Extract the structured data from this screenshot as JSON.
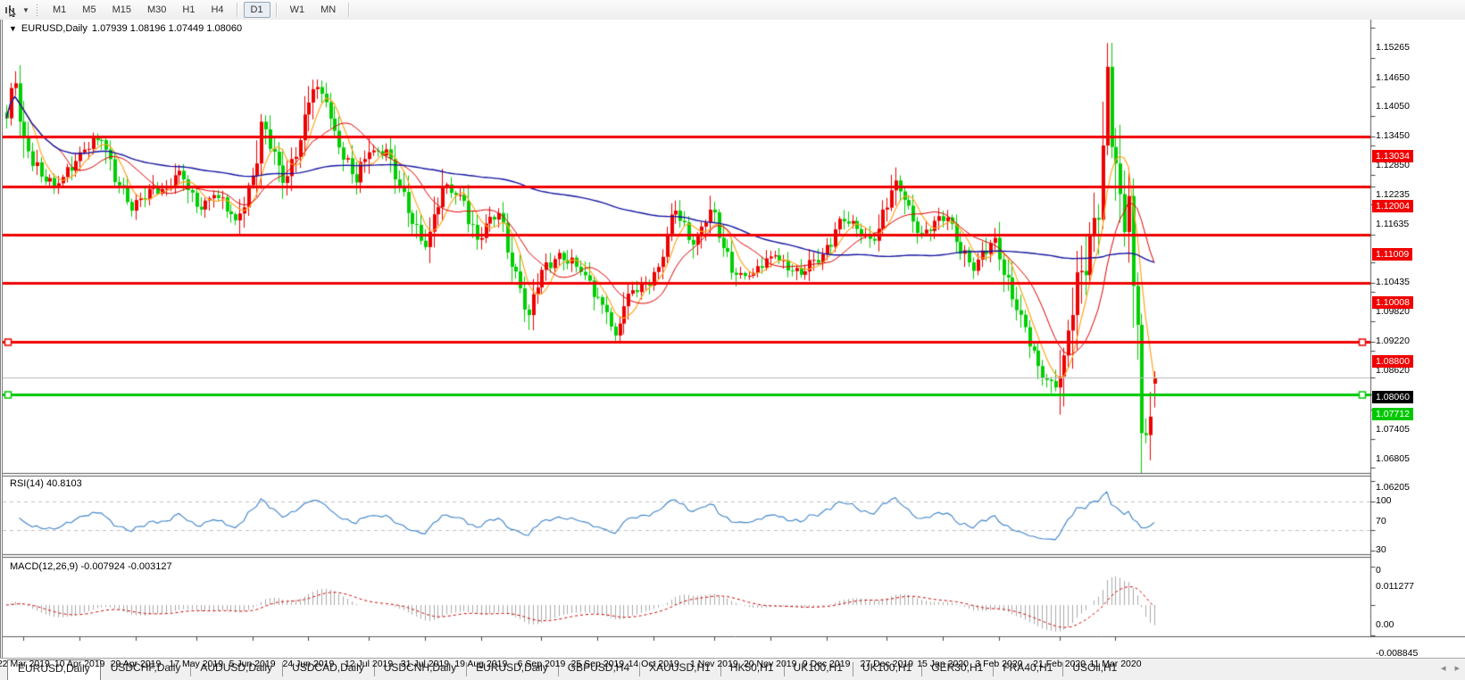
{
  "toolbar": {
    "timeframe_buttons": [
      "M1",
      "M5",
      "M15",
      "M30",
      "H1",
      "H4",
      "D1",
      "W1",
      "MN"
    ],
    "active_timeframe": "D1",
    "cursor_tool_icon": "chart-cursor-icon",
    "dropdown_glyph": "▼"
  },
  "chart_header": {
    "dropdown_glyph": "▼",
    "symbol": "EURUSD,Daily",
    "values_text": "1.07939 1.08196 1.07449 1.08060"
  },
  "y_axis": {
    "tick_labels": [
      "1.15265",
      "1.14650",
      "1.14050",
      "1.13450",
      "1.12850",
      "1.12235",
      "1.11635",
      "1.10435",
      "1.09820",
      "1.09220",
      "1.08620",
      "1.07405",
      "1.06805",
      "1.06205"
    ],
    "badges": [
      {
        "label": "1.13034",
        "bg": "#f00000"
      },
      {
        "label": "1.12004",
        "bg": "#f00000"
      },
      {
        "label": "1.11009",
        "bg": "#f00000"
      },
      {
        "label": "1.10008",
        "bg": "#f00000"
      },
      {
        "label": "1.08800",
        "bg": "#f00000"
      },
      {
        "label": "1.08060",
        "bg": "#000000"
      },
      {
        "label": "1.07712",
        "bg": "#00c800"
      }
    ]
  },
  "rsi_panel": {
    "label": "RSI(14)",
    "value": "40.8103",
    "axis_labels": [
      {
        "text": "100",
        "level": 100
      },
      {
        "text": "70",
        "level": 70
      },
      {
        "text": "30",
        "level": 30
      },
      {
        "text": "0",
        "level": 0
      }
    ],
    "dashed_levels": [
      70,
      30
    ],
    "line_color": "#3c82c8"
  },
  "macd_panel": {
    "label": "MACD(12,26,9)",
    "values_text": "-0.007924 -0.003127",
    "axis_labels": [
      {
        "text": "0.011277",
        "value": 0.011277
      },
      {
        "text": "0.00",
        "value": 0.0
      },
      {
        "text": "-0.008845",
        "value": -0.008845
      }
    ],
    "histogram_color": "#aaaaaa",
    "signal_color": "#d00000"
  },
  "x_axis": {
    "labels": [
      {
        "text": "22 Mar 2019",
        "date": "2019-03-22"
      },
      {
        "text": "10 Apr 2019",
        "date": "2019-04-10"
      },
      {
        "text": "29 Apr 2019",
        "date": "2019-04-29"
      },
      {
        "text": "17 May 2019",
        "date": "2019-05-17"
      },
      {
        "text": "5 Jun 2019",
        "date": "2019-06-05"
      },
      {
        "text": "24 Jun 2019",
        "date": "2019-06-24"
      },
      {
        "text": "12 Jul 2019",
        "date": "2019-07-12"
      },
      {
        "text": "31 Jul 2019",
        "date": "2019-07-31"
      },
      {
        "text": "19 Aug 2019",
        "date": "2019-08-19"
      },
      {
        "text": "6 Sep 2019",
        "date": "2019-09-06"
      },
      {
        "text": "25 Sep 2019",
        "date": "2019-09-25"
      },
      {
        "text": "14 Oct 2019",
        "date": "2019-10-14"
      },
      {
        "text": "1 Nov 2019",
        "date": "2019-11-01"
      },
      {
        "text": "20 Nov 2019",
        "date": "2019-11-20"
      },
      {
        "text": "9 Dec 2019",
        "date": "2019-12-09"
      },
      {
        "text": "27 Dec 2019",
        "date": "2019-12-27"
      },
      {
        "text": "15 Jan 2020",
        "date": "2020-01-15"
      },
      {
        "text": "3 Feb 2020",
        "date": "2020-02-03"
      },
      {
        "text": "21 Feb 2020",
        "date": "2020-02-21"
      },
      {
        "text": "11 Mar 2020",
        "date": "2020-03-11"
      }
    ]
  },
  "tab_bar": {
    "tabs": [
      "EURUSD,Daily",
      "USDCHF,Daily",
      "AUDUSD,Daily",
      "USDCAD,Daily",
      "USDCNH,Daily",
      "EURUSD,Daily",
      "GBPUSD,H4",
      "XAUUSD,H1",
      "HK50,H1",
      "UK100,H1",
      "UK100,H1",
      "GER30,H1",
      "FRA40,H1",
      "USOil,H1"
    ],
    "active_index": 0,
    "scroll_left_glyph": "◂",
    "scroll_right_glyph": "▸"
  },
  "chart_data": {
    "type": "candlestick",
    "symbol": "EURUSD",
    "timeframe": "Daily",
    "date_range": [
      "2019-03-18",
      "2020-03-24"
    ],
    "price_axis_range": [
      1.06205,
      1.15265
    ],
    "bull_color": "#ee0000",
    "bear_color": "#00ce00",
    "current_price": 1.0806,
    "current_price_line_color": "#b8b8b8",
    "last_candle": {
      "open": 1.07939,
      "high": 1.08196,
      "low": 1.07449,
      "close": 1.0806
    },
    "horizontal_lines": [
      {
        "price": 1.13034,
        "color": "#f00000",
        "width": 3,
        "markers": false
      },
      {
        "price": 1.12004,
        "color": "#f00000",
        "width": 3,
        "markers": false
      },
      {
        "price": 1.11009,
        "color": "#f00000",
        "width": 3,
        "markers": false
      },
      {
        "price": 1.10008,
        "color": "#f00000",
        "width": 3,
        "markers": false
      },
      {
        "price": 1.088,
        "color": "#f00000",
        "width": 3,
        "markers": true
      },
      {
        "price": 1.07712,
        "color": "#00c800",
        "width": 3,
        "markers": true
      }
    ],
    "moving_averages": [
      {
        "period": 6,
        "color": "#ffa520",
        "width": 1.2
      },
      {
        "period": 13,
        "color": "#e00000",
        "width": 1
      },
      {
        "period": 100,
        "color": "#1414a0",
        "width": 1.4
      }
    ],
    "indicators": [
      {
        "name": "RSI",
        "period": 14,
        "current": 40.8103
      },
      {
        "name": "MACD",
        "fast": 12,
        "slow": 26,
        "signal": 9,
        "current_main": -0.007924,
        "current_signal": -0.003127
      }
    ],
    "close_waypoints": [
      [
        "2019-03-18",
        1.134
      ],
      [
        "2019-03-20",
        1.1412
      ],
      [
        "2019-03-22",
        1.1302
      ],
      [
        "2019-03-28",
        1.122
      ],
      [
        "2019-04-02",
        1.12
      ],
      [
        "2019-04-10",
        1.127
      ],
      [
        "2019-04-17",
        1.1295
      ],
      [
        "2019-04-26",
        1.115
      ],
      [
        "2019-05-03",
        1.12
      ],
      [
        "2019-05-08",
        1.1195
      ],
      [
        "2019-05-13",
        1.1232
      ],
      [
        "2019-05-17",
        1.1158
      ],
      [
        "2019-05-23",
        1.1182
      ],
      [
        "2019-05-30",
        1.113
      ],
      [
        "2019-06-05",
        1.1222
      ],
      [
        "2019-06-07",
        1.1333
      ],
      [
        "2019-06-14",
        1.1207
      ],
      [
        "2019-06-20",
        1.1295
      ],
      [
        "2019-06-25",
        1.14
      ],
      [
        "2019-06-28",
        1.1373
      ],
      [
        "2019-07-03",
        1.128
      ],
      [
        "2019-07-09",
        1.1208
      ],
      [
        "2019-07-12",
        1.127
      ],
      [
        "2019-07-18",
        1.1276
      ],
      [
        "2019-07-25",
        1.1145
      ],
      [
        "2019-07-31",
        1.1075
      ],
      [
        "2019-08-06",
        1.12
      ],
      [
        "2019-08-13",
        1.117
      ],
      [
        "2019-08-16",
        1.109
      ],
      [
        "2019-08-23",
        1.1145
      ],
      [
        "2019-08-30",
        1.099
      ],
      [
        "2019-09-03",
        1.0935
      ],
      [
        "2019-09-06",
        1.1028
      ],
      [
        "2019-09-12",
        1.1063
      ],
      [
        "2019-09-20",
        1.1017
      ],
      [
        "2019-09-27",
        1.0941
      ],
      [
        "2019-10-01",
        1.0893
      ],
      [
        "2019-10-04",
        1.0979
      ],
      [
        "2019-10-10",
        1.1003
      ],
      [
        "2019-10-15",
        1.1034
      ],
      [
        "2019-10-21",
        1.115
      ],
      [
        "2019-10-25",
        1.108
      ],
      [
        "2019-10-31",
        1.1152
      ],
      [
        "2019-11-05",
        1.1073
      ],
      [
        "2019-11-08",
        1.1018
      ],
      [
        "2019-11-14",
        1.1022
      ],
      [
        "2019-11-21",
        1.1058
      ],
      [
        "2019-11-29",
        1.1018
      ],
      [
        "2019-12-06",
        1.106
      ],
      [
        "2019-12-12",
        1.1133
      ],
      [
        "2019-12-18",
        1.1112
      ],
      [
        "2019-12-24",
        1.1088
      ],
      [
        "2019-12-31",
        1.1212
      ],
      [
        "2020-01-02",
        1.1172
      ],
      [
        "2020-01-08",
        1.1103
      ],
      [
        "2020-01-16",
        1.1136
      ],
      [
        "2020-01-24",
        1.1026
      ],
      [
        "2020-01-31",
        1.1094
      ],
      [
        "2020-02-07",
        1.0945
      ],
      [
        "2020-02-14",
        1.083
      ],
      [
        "2020-02-20",
        1.0786
      ],
      [
        "2020-02-24",
        1.0852
      ],
      [
        "2020-02-28",
        1.1026
      ],
      [
        "2020-03-04",
        1.1135
      ],
      [
        "2020-03-06",
        1.1284
      ],
      [
        "2020-03-09",
        1.1446
      ],
      [
        "2020-03-10",
        1.1281
      ],
      [
        "2020-03-12",
        1.1184
      ],
      [
        "2020-03-13",
        1.1106
      ],
      [
        "2020-03-16",
        1.118
      ],
      [
        "2020-03-17",
        1.0995
      ],
      [
        "2020-03-18",
        1.0915
      ],
      [
        "2020-03-19",
        1.0692
      ],
      [
        "2020-03-20",
        1.0688
      ],
      [
        "2020-03-23",
        1.0726
      ],
      [
        "2020-03-24",
        1.0806
      ]
    ],
    "candle_overrides": {
      "2019-03-20": {
        "h": 1.1437
      },
      "2019-10-01": {
        "l": 1.0879
      },
      "2019-12-31": {
        "h": 1.1239
      },
      "2020-02-20": {
        "l": 1.0778
      },
      "2020-03-09": {
        "h": 1.1495
      },
      "2020-03-23": {
        "l": 1.0636
      },
      "2020-03-24": {
        "o": 1.07939,
        "h": 1.08196,
        "l": 1.07449,
        "c": 1.0806
      }
    }
  }
}
